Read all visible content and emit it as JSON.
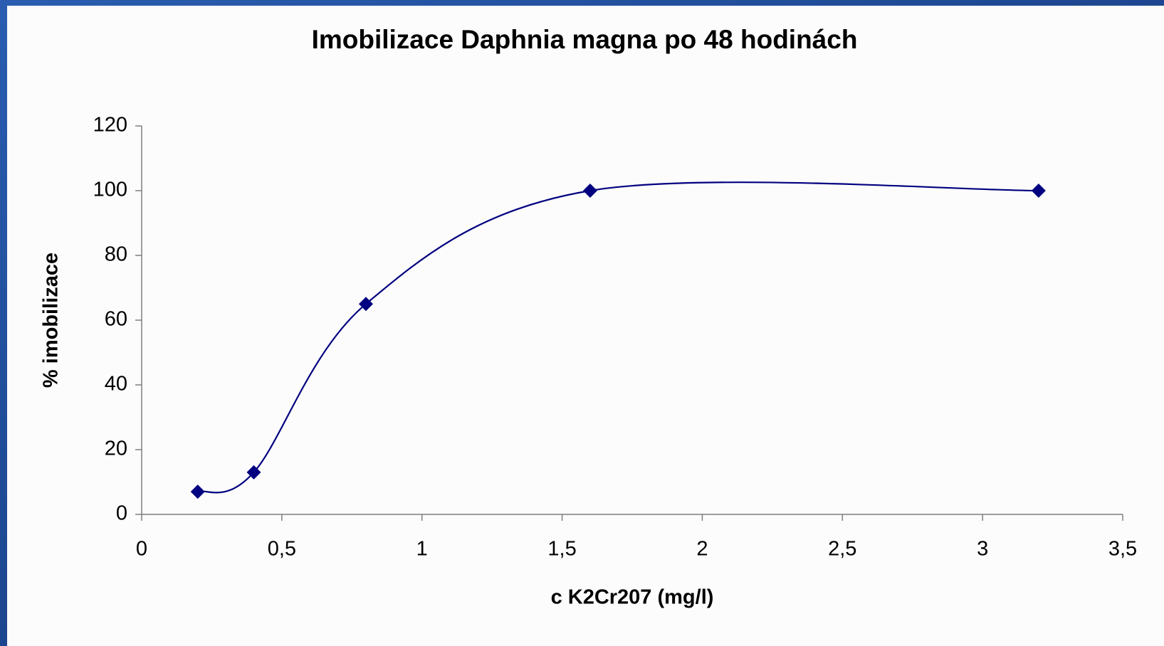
{
  "chart_data": {
    "type": "line",
    "title": "Imobilizace Daphnia magna po 48 hodinách",
    "x_label": "c K2Cr207 (mg/l)",
    "y_label": "% imobilizace",
    "x": [
      0.2,
      0.4,
      0.8,
      1.6,
      3.2
    ],
    "series": [
      {
        "name": "imobilizace",
        "color": "#000080",
        "values": [
          7,
          13,
          65,
          100,
          100
        ]
      }
    ],
    "xlim": [
      0,
      3.5
    ],
    "xticks": [
      0,
      {
        "value": 0.5,
        "label": "0,5"
      },
      1,
      {
        "value": 1.5,
        "label": "1,5"
      },
      2,
      {
        "value": 2.5,
        "label": "2,5"
      },
      3,
      {
        "value": 3.5,
        "label": "3,5"
      }
    ],
    "ylim": [
      0,
      120
    ],
    "yticks": [
      0,
      20,
      40,
      60,
      80,
      100,
      120
    ],
    "smooth": true,
    "grid": false
  }
}
